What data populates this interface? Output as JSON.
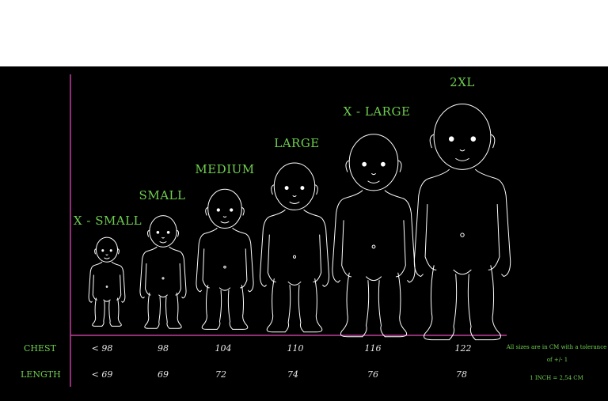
{
  "sizes": [
    {
      "label": "X - SMALL",
      "chest": "< 98",
      "length": "< 69"
    },
    {
      "label": "SMALL",
      "chest": "98",
      "length": "69"
    },
    {
      "label": "MEDIUM",
      "chest": "104",
      "length": "72"
    },
    {
      "label": "LARGE",
      "chest": "110",
      "length": "74"
    },
    {
      "label": "X - LARGE",
      "chest": "116",
      "length": "76"
    },
    {
      "label": "2XL",
      "chest": "122",
      "length": "78"
    }
  ],
  "rows": {
    "chest": "CHEST",
    "length": "LENGTH"
  },
  "notes": {
    "line1": "All sizes are in CM with a tolerance",
    "line2": "of +/- 1",
    "line3": "1 INCH = 2,54 CM"
  },
  "colors": {
    "background": "#000000",
    "accent": "#6fcf4f",
    "axis": "#c0409a",
    "figure": "#ffffff"
  }
}
